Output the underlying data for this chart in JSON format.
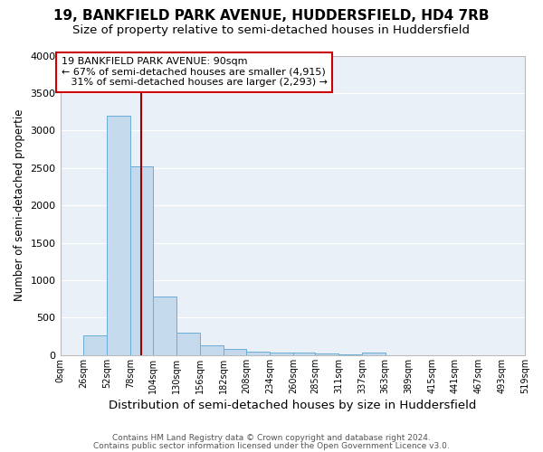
{
  "title1": "19, BANKFIELD PARK AVENUE, HUDDERSFIELD, HD4 7RB",
  "title2": "Size of property relative to semi-detached houses in Huddersfield",
  "xlabel": "Distribution of semi-detached houses by size in Huddersfield",
  "ylabel": "Number of semi-detached propertie",
  "footnote1": "Contains HM Land Registry data © Crown copyright and database right 2024.",
  "footnote2": "Contains public sector information licensed under the Open Government Licence v3.0.",
  "bin_labels": [
    "0sqm",
    "26sqm",
    "52sqm",
    "78sqm",
    "104sqm",
    "130sqm",
    "156sqm",
    "182sqm",
    "208sqm",
    "234sqm",
    "260sqm",
    "285sqm",
    "311sqm",
    "337sqm",
    "363sqm",
    "389sqm",
    "415sqm",
    "441sqm",
    "467sqm",
    "493sqm",
    "519sqm"
  ],
  "bin_edges": [
    0,
    26,
    52,
    78,
    104,
    130,
    156,
    182,
    208,
    234,
    260,
    285,
    311,
    337,
    363,
    389,
    415,
    441,
    467,
    493,
    519
  ],
  "bar_heights": [
    0,
    260,
    3200,
    2520,
    780,
    300,
    130,
    80,
    45,
    35,
    30,
    20,
    15,
    30,
    0,
    0,
    0,
    0,
    0,
    0
  ],
  "bar_color": "#c5d9ed",
  "bar_edge_color": "#6aaed6",
  "vline_x": 90,
  "vline_color": "#990000",
  "annotation_text": "19 BANKFIELD PARK AVENUE: 90sqm\n← 67% of semi-detached houses are smaller (4,915)\n   31% of semi-detached houses are larger (2,293) →",
  "annotation_box_color": "white",
  "annotation_box_edge_color": "#cc0000",
  "ylim": [
    0,
    4000
  ],
  "yticks": [
    0,
    500,
    1000,
    1500,
    2000,
    2500,
    3000,
    3500,
    4000
  ],
  "bg_color": "#ffffff",
  "axes_bg_color": "#eaf0f8",
  "grid_color": "#ffffff",
  "title1_fontsize": 11,
  "title2_fontsize": 9.5,
  "xlabel_fontsize": 9.5,
  "ylabel_fontsize": 8.5,
  "footnote_fontsize": 6.5,
  "annot_fontsize": 8
}
